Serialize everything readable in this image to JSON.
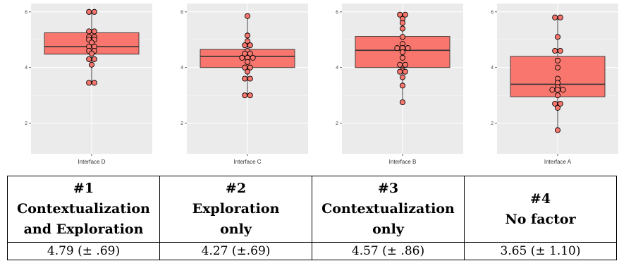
{
  "chart_data": [
    {
      "type": "box",
      "category": "Interface D",
      "ylim": [
        0.9,
        6.3
      ],
      "yticks": [
        2,
        4,
        6
      ],
      "grid": true,
      "box": {
        "q1": 4.48,
        "median": 4.75,
        "q3": 5.25,
        "whisker_low": 3.45,
        "whisker_high": 6.0
      },
      "points": [
        6.0,
        6.0,
        5.3,
        5.3,
        5.1,
        5.1,
        5.0,
        5.0,
        4.9,
        4.75,
        4.75,
        4.6,
        4.6,
        4.5,
        4.3,
        4.3,
        4.1,
        3.45,
        3.45
      ],
      "color": "#f8766d"
    },
    {
      "type": "box",
      "category": "Interface C",
      "ylim": [
        0.9,
        6.3
      ],
      "yticks": [
        2,
        4,
        6
      ],
      "grid": true,
      "box": {
        "q1": 4.0,
        "median": 4.4,
        "q3": 4.65,
        "whisker_low": 3.0,
        "whisker_high": 5.85
      },
      "points": [
        5.85,
        5.15,
        4.95,
        4.8,
        4.8,
        4.6,
        4.5,
        4.5,
        4.35,
        4.35,
        4.35,
        4.2,
        4.0,
        4.0,
        3.85,
        3.6,
        3.6,
        3.0,
        3.0
      ],
      "color": "#f8766d"
    },
    {
      "type": "box",
      "category": "Interface B",
      "ylim": [
        0.9,
        6.3
      ],
      "yticks": [
        2,
        4,
        6
      ],
      "grid": true,
      "box": {
        "q1": 4.0,
        "median": 4.62,
        "q3": 5.12,
        "whisker_low": 2.75,
        "whisker_high": 5.9
      },
      "points": [
        5.9,
        5.9,
        5.75,
        5.6,
        5.4,
        5.1,
        4.85,
        4.7,
        4.7,
        4.7,
        4.55,
        4.35,
        4.1,
        4.1,
        3.9,
        3.85,
        3.85,
        3.65,
        3.35,
        2.75
      ],
      "color": "#f8766d"
    },
    {
      "type": "box",
      "category": "Interface A",
      "ylim": [
        0.9,
        6.3
      ],
      "yticks": [
        2,
        4,
        6
      ],
      "grid": true,
      "box": {
        "q1": 2.95,
        "median": 3.4,
        "q3": 4.4,
        "whisker_low": 1.75,
        "whisker_high": 5.8
      },
      "points": [
        5.8,
        5.8,
        5.1,
        4.6,
        4.6,
        4.25,
        4.0,
        3.6,
        3.45,
        3.3,
        3.2,
        3.2,
        3.2,
        3.0,
        2.7,
        2.7,
        2.55,
        1.75
      ],
      "color": "#f8766d"
    }
  ],
  "table": {
    "columns": [
      {
        "number": "#1",
        "lines": [
          "Contextualization",
          "and Exploration"
        ],
        "value": "4.79 (± .69)"
      },
      {
        "number": "#2",
        "lines": [
          "Exploration",
          "only"
        ],
        "value": "4.27 (±.69)"
      },
      {
        "number": "#3",
        "lines": [
          "Contextualization",
          "only"
        ],
        "value": "4.57 (± .86)"
      },
      {
        "number": "#4",
        "lines": [
          "No factor"
        ],
        "value": "3.65 (± 1.10)"
      }
    ]
  }
}
